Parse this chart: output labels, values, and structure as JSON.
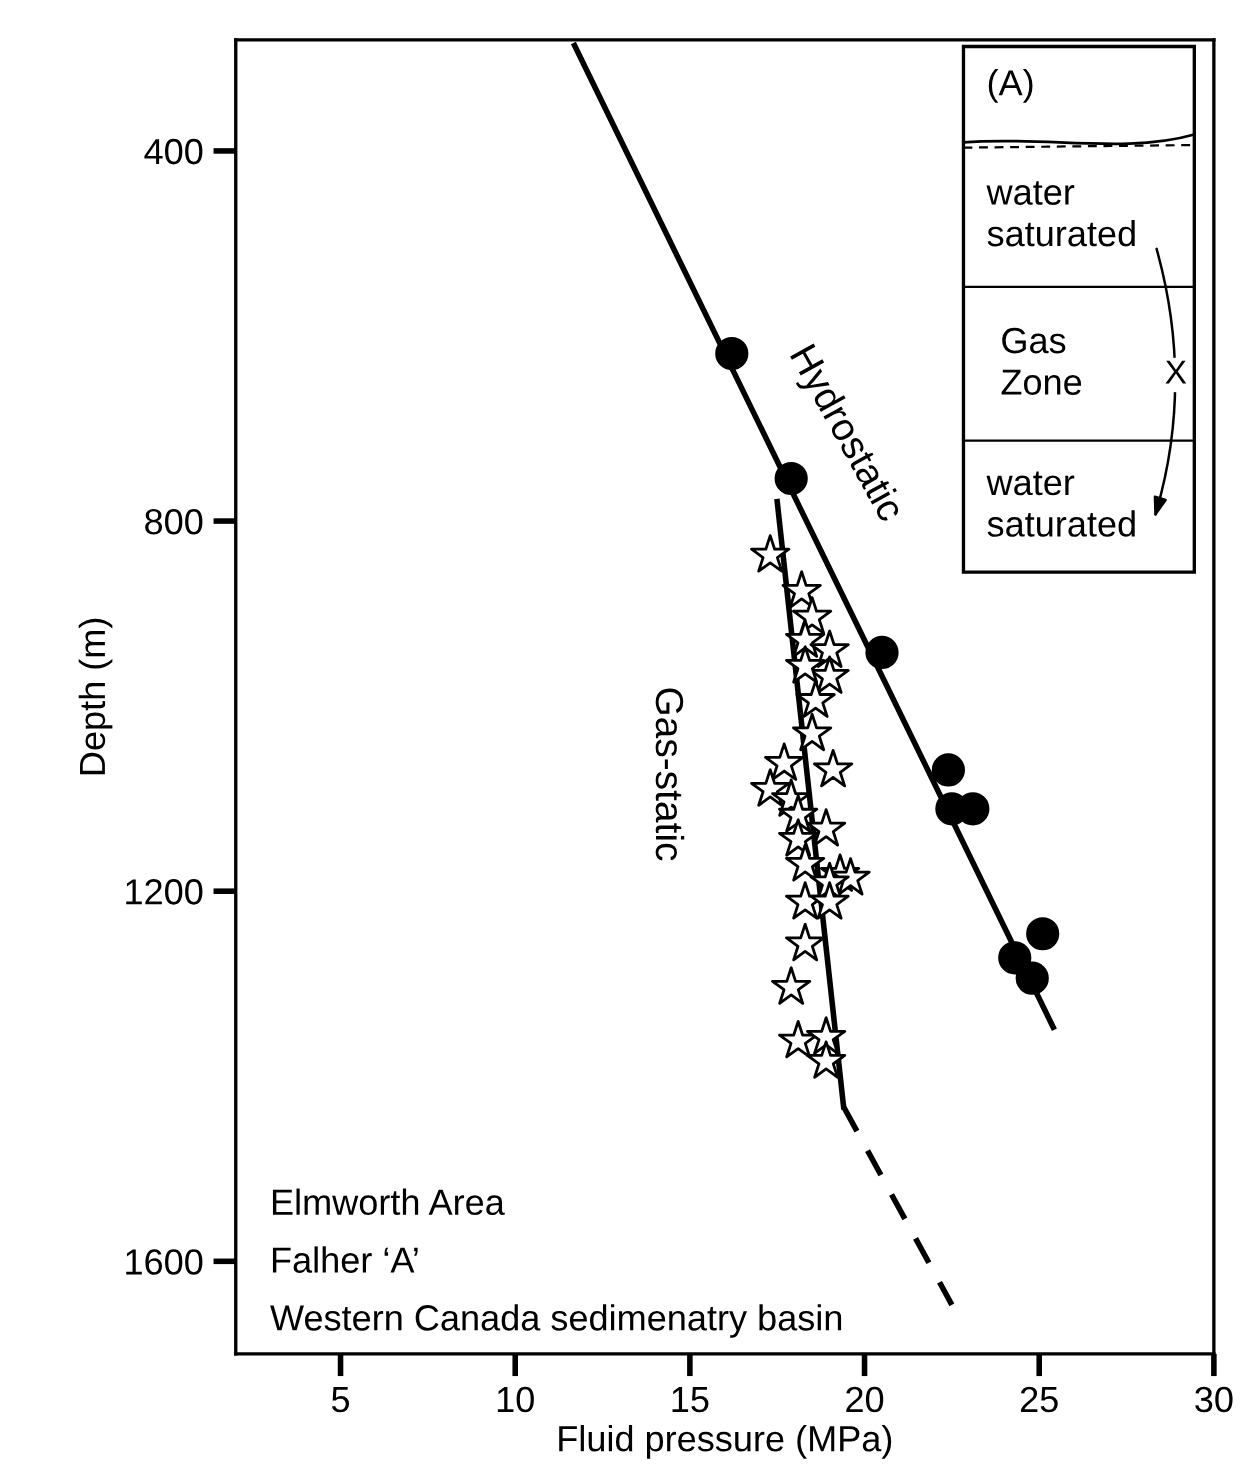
{
  "chart_data": {
    "type": "scatter",
    "xlabel": "Fluid pressure (MPa)",
    "ylabel": "Depth (m)",
    "xlim": [
      2,
      30
    ],
    "xticks": [
      5,
      10,
      15,
      20,
      25,
      30
    ],
    "ylim": [
      1700,
      280
    ],
    "yticks": [
      400,
      800,
      1200,
      1600
    ],
    "grid": false,
    "legend": false,
    "series": [
      {
        "type": "line",
        "color": "#000000",
        "x": [
          11.7,
          25.4
        ],
        "values": [
          286,
          1347
        ],
        "line_style": "solid"
      },
      {
        "type": "line",
        "color": "#000000",
        "x": [
          17.5,
          19.4
        ],
        "values": [
          779,
          1433
        ],
        "line_style": "solid"
      },
      {
        "type": "line",
        "color": "#000000",
        "x": [
          19.4,
          22.5
        ],
        "values": [
          1433,
          1647
        ],
        "line_style": "dashed"
      },
      {
        "color": "#000000",
        "marker": "circle",
        "x": [
          16.2,
          17.9,
          20.5,
          22.4,
          22.5,
          23.1,
          24.3,
          25.1,
          24.8
        ],
        "values": [
          619,
          754,
          942,
          1069,
          1111,
          1111,
          1272,
          1246,
          1294
        ]
      },
      {
        "color": "#ffffff",
        "marker": "star",
        "x": [
          17.3,
          18.2,
          18.5,
          18.3,
          19.0,
          19.0,
          18.3,
          18.6,
          18.5,
          17.7,
          19.1,
          17.3,
          17.9,
          18.1,
          18.9,
          18.1,
          18.3,
          19.3,
          19.6,
          19.0,
          18.3,
          19.0,
          18.3,
          17.9,
          18.1,
          18.9,
          18.9
        ],
        "values": [
          837,
          876,
          904,
          929,
          940,
          968,
          957,
          994,
          1030,
          1062,
          1069,
          1090,
          1101,
          1118,
          1133,
          1144,
          1171,
          1182,
          1186,
          1191,
          1212,
          1212,
          1257,
          1304,
          1362,
          1358,
          1384
        ]
      }
    ],
    "annotations": [
      "Hydrostatic",
      "Gas-static",
      "Elmworth Area",
      "Falher ‘A’",
      "Western Canada sedimenatry basin",
      "(A)",
      "water\nsaturated",
      "Gas\nZone",
      "water\nsaturated",
      "X"
    ]
  }
}
